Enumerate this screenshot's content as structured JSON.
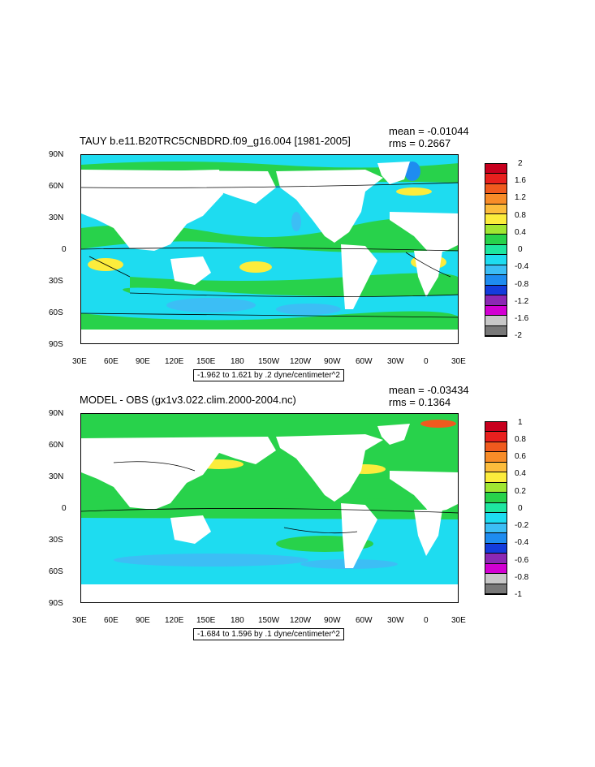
{
  "panels": [
    {
      "id": "top",
      "title": "TAUY b.e11.B20TRC5CNBDRD.f09_g16.004 [1981-2005]",
      "mean_text": "mean = -0.01044",
      "rms_text": "rms = 0.2667",
      "range_text": "-1.962 to 1.621 by .2 dyne/centimeter^2",
      "lat_labels": [
        "90N",
        "60N",
        "30N",
        "0",
        "30S",
        "60S",
        "90S"
      ],
      "lon_labels": [
        "30E",
        "60E",
        "90E",
        "120E",
        "150E",
        "180",
        "150W",
        "120W",
        "90W",
        "60W",
        "30W",
        "0",
        "30E"
      ],
      "colorbar_labels": [
        "2",
        "1.6",
        "1.2",
        "0.8",
        "0.4",
        "0",
        "-0.4",
        "-0.8",
        "-1.2",
        "-1.6",
        "-2"
      ],
      "colorbar_colors": [
        "#c8001e",
        "#e8201e",
        "#f05a1e",
        "#f88c28",
        "#fcbc3c",
        "#fcec3c",
        "#a0e632",
        "#28d24b",
        "#1ee6a0",
        "#1edcf0",
        "#3cbef5",
        "#1e8cf0",
        "#143cdc",
        "#8c28b4",
        "#d200d2",
        "#c8c8c8",
        "#787878"
      ],
      "regions": [
        {
          "fill": "#28d24b"
        },
        {
          "fill": "#1edcf0"
        },
        {
          "fill": "#fcec3c"
        },
        {
          "fill": "#3cbef5"
        }
      ]
    },
    {
      "id": "bottom",
      "title": "MODEL - OBS (gx1v3.022.clim.2000-2004.nc)",
      "mean_text": "mean = -0.03434",
      "rms_text": "rms = 0.1364",
      "range_text": "-1.684 to 1.596 by .1 dyne/centimeter^2",
      "lat_labels": [
        "90N",
        "60N",
        "30N",
        "0",
        "30S",
        "60S",
        "90S"
      ],
      "lon_labels": [
        "30E",
        "60E",
        "90E",
        "120E",
        "150E",
        "180",
        "150W",
        "120W",
        "90W",
        "60W",
        "30W",
        "0",
        "30E"
      ],
      "colorbar_labels": [
        "1",
        "0.8",
        "0.6",
        "0.4",
        "0.2",
        "0",
        "-0.2",
        "-0.4",
        "-0.6",
        "-0.8",
        "-1"
      ],
      "colorbar_colors": [
        "#c8001e",
        "#e8201e",
        "#f05a1e",
        "#f88c28",
        "#fcbc3c",
        "#fcec3c",
        "#a0e632",
        "#28d24b",
        "#1ee6a0",
        "#1edcf0",
        "#3cbef5",
        "#1e8cf0",
        "#143cdc",
        "#8c28b4",
        "#d200d2",
        "#c8c8c8",
        "#787878"
      ],
      "regions": [
        {
          "fill": "#28d24b"
        },
        {
          "fill": "#1edcf0"
        },
        {
          "fill": "#fcec3c"
        },
        {
          "fill": "#3cbef5"
        }
      ]
    }
  ]
}
